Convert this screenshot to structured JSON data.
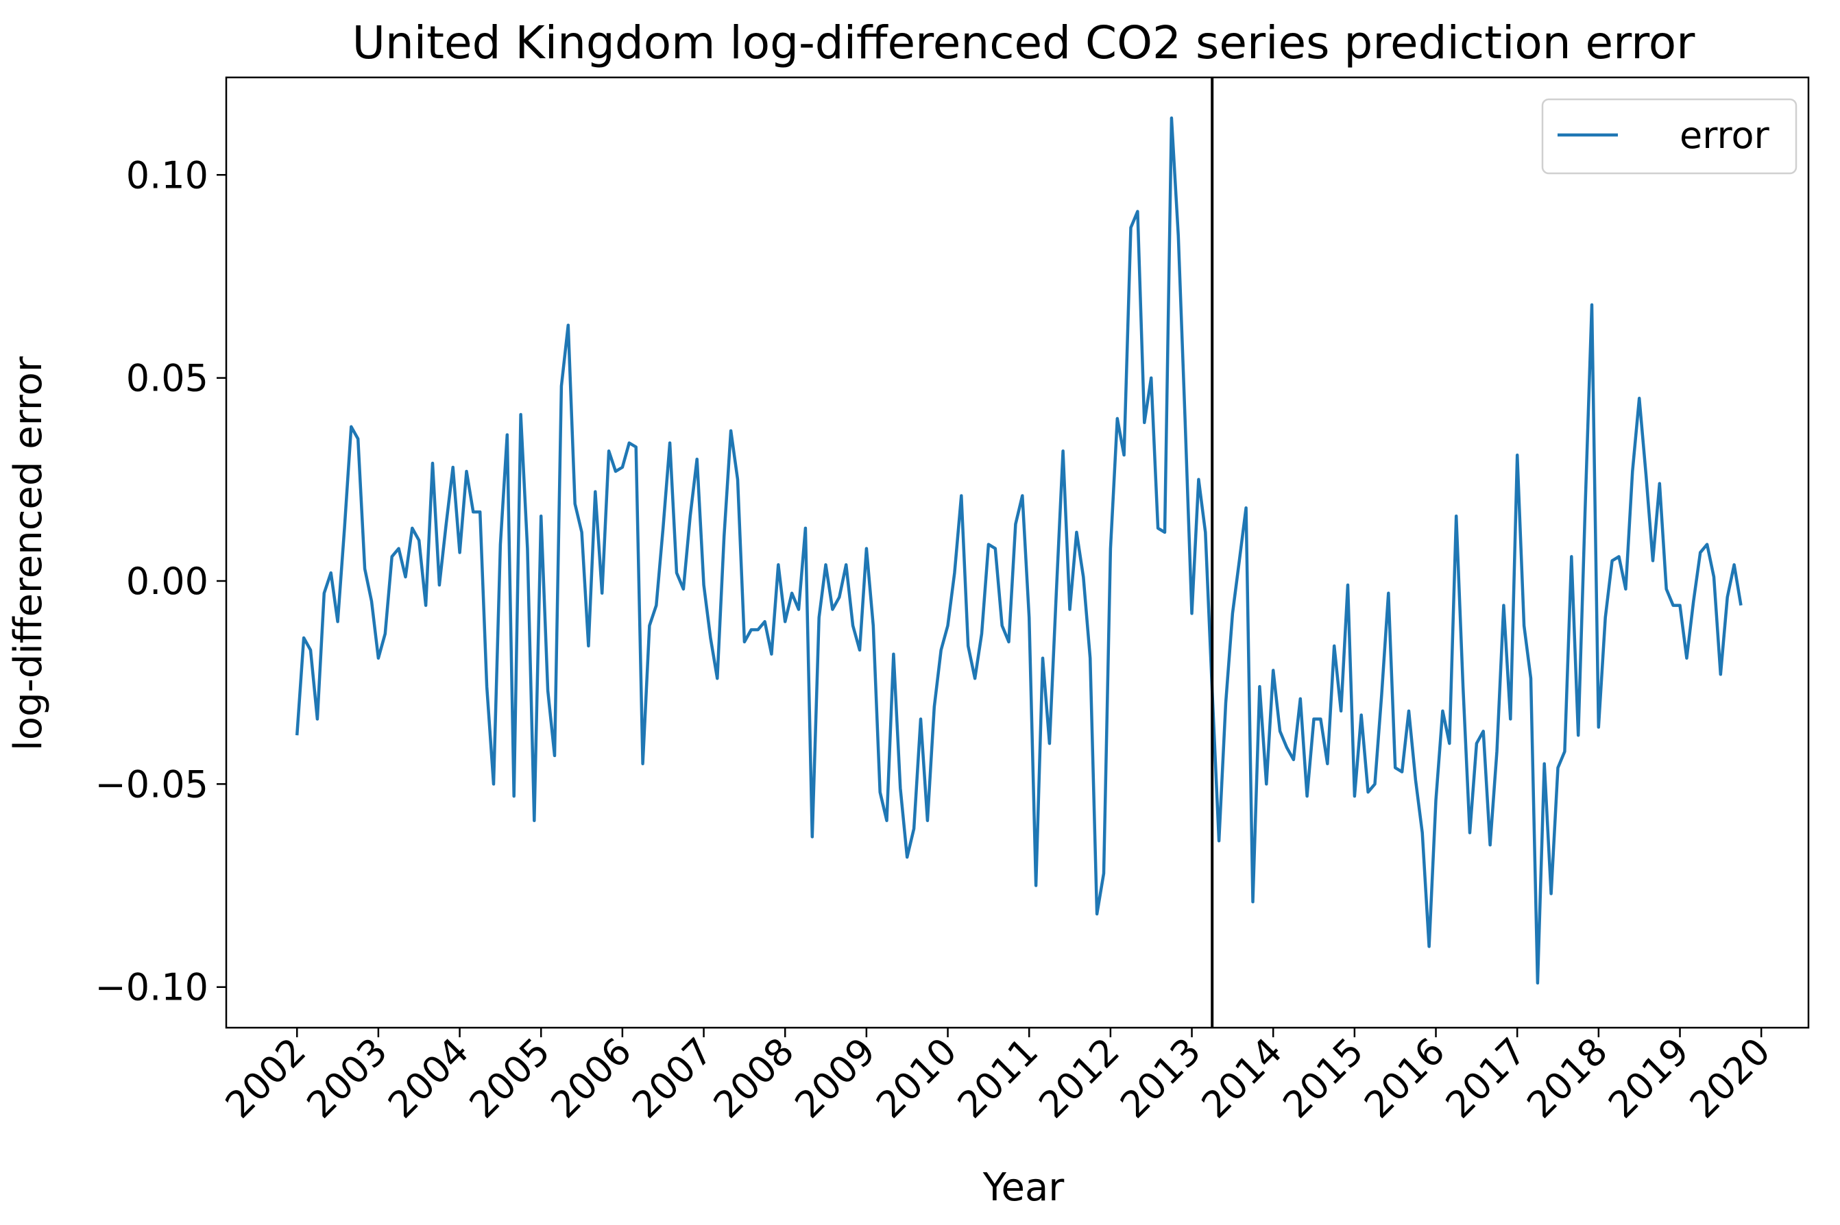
{
  "chart_data": {
    "type": "line",
    "title": "United Kingdom log-differenced CO2 series prediction error",
    "xlabel": "Year",
    "ylabel": "log-differenced error",
    "xlim": [
      2001.13,
      2020.58
    ],
    "ylim": [
      -0.11,
      0.124
    ],
    "x_ticks": [
      2002,
      2003,
      2004,
      2005,
      2006,
      2007,
      2008,
      2009,
      2010,
      2011,
      2012,
      2013,
      2014,
      2015,
      2016,
      2017,
      2018,
      2019,
      2020
    ],
    "x_tick_labels": [
      "2002",
      "2003",
      "2004",
      "2005",
      "2006",
      "2007",
      "2008",
      "2009",
      "2010",
      "2011",
      "2012",
      "2013",
      "2014",
      "2015",
      "2016",
      "2017",
      "2018",
      "2019",
      "2020"
    ],
    "y_ticks": [
      -0.1,
      -0.05,
      0.0,
      0.05,
      0.1
    ],
    "y_tick_labels": [
      "−0.10",
      "−0.05",
      "0.00",
      "0.05",
      "0.10"
    ],
    "vline_x": 2013.25,
    "grid": false,
    "legend_position": "top-right",
    "series": [
      {
        "name": "error",
        "color": "#1f77b4",
        "x_start": 2002.0,
        "x_step_months": 1,
        "values": [
          -0.038,
          -0.014,
          -0.017,
          -0.034,
          -0.003,
          0.002,
          -0.01,
          0.013,
          0.038,
          0.035,
          0.003,
          -0.005,
          -0.019,
          -0.013,
          0.006,
          0.008,
          0.001,
          0.013,
          0.01,
          -0.006,
          0.029,
          -0.001,
          0.014,
          0.028,
          0.007,
          0.027,
          0.017,
          0.017,
          -0.026,
          -0.05,
          0.009,
          0.036,
          -0.053,
          0.041,
          0.008,
          -0.059,
          0.016,
          -0.027,
          -0.043,
          0.048,
          0.063,
          0.019,
          0.012,
          -0.016,
          0.022,
          -0.003,
          0.032,
          0.027,
          0.028,
          0.034,
          0.033,
          -0.045,
          -0.011,
          -0.006,
          0.013,
          0.034,
          0.002,
          -0.002,
          0.016,
          0.03,
          -0.001,
          -0.014,
          -0.024,
          0.011,
          0.037,
          0.025,
          -0.015,
          -0.012,
          -0.012,
          -0.01,
          -0.018,
          0.004,
          -0.01,
          -0.003,
          -0.007,
          0.013,
          -0.063,
          -0.009,
          0.004,
          -0.007,
          -0.004,
          0.004,
          -0.011,
          -0.017,
          0.008,
          -0.011,
          -0.052,
          -0.059,
          -0.018,
          -0.051,
          -0.068,
          -0.061,
          -0.034,
          -0.059,
          -0.031,
          -0.017,
          -0.011,
          0.002,
          0.021,
          -0.016,
          -0.024,
          -0.013,
          0.009,
          0.008,
          -0.011,
          -0.015,
          0.014,
          0.021,
          -0.009,
          -0.075,
          -0.019,
          -0.04,
          -0.003,
          0.032,
          -0.007,
          0.012,
          0.001,
          -0.019,
          -0.082,
          -0.072,
          0.008,
          0.04,
          0.031,
          0.087,
          0.091,
          0.039,
          0.05,
          0.013,
          0.012,
          0.114,
          0.085,
          0.04,
          -0.008,
          0.025,
          0.012,
          -0.027,
          -0.064,
          -0.03,
          -0.008,
          0.005,
          0.018,
          -0.079,
          -0.026,
          -0.05,
          -0.022,
          -0.037,
          -0.041,
          -0.044,
          -0.029,
          -0.053,
          -0.034,
          -0.034,
          -0.045,
          -0.016,
          -0.032,
          -0.001,
          -0.053,
          -0.033,
          -0.052,
          -0.05,
          -0.028,
          -0.003,
          -0.046,
          -0.047,
          -0.032,
          -0.049,
          -0.062,
          -0.09,
          -0.054,
          -0.032,
          -0.04,
          0.016,
          -0.026,
          -0.062,
          -0.04,
          -0.037,
          -0.065,
          -0.042,
          -0.006,
          -0.034,
          0.031,
          -0.011,
          -0.024,
          -0.099,
          -0.045,
          -0.077,
          -0.046,
          -0.042,
          0.006,
          -0.038,
          0.017,
          0.068,
          -0.036,
          -0.009,
          0.005,
          0.006,
          -0.002,
          0.027,
          0.045,
          0.026,
          0.005,
          0.024,
          -0.002,
          -0.006,
          -0.006,
          -0.019,
          -0.005,
          0.007,
          0.009,
          0.001,
          -0.023,
          -0.004,
          0.004,
          -0.006
        ]
      }
    ]
  }
}
